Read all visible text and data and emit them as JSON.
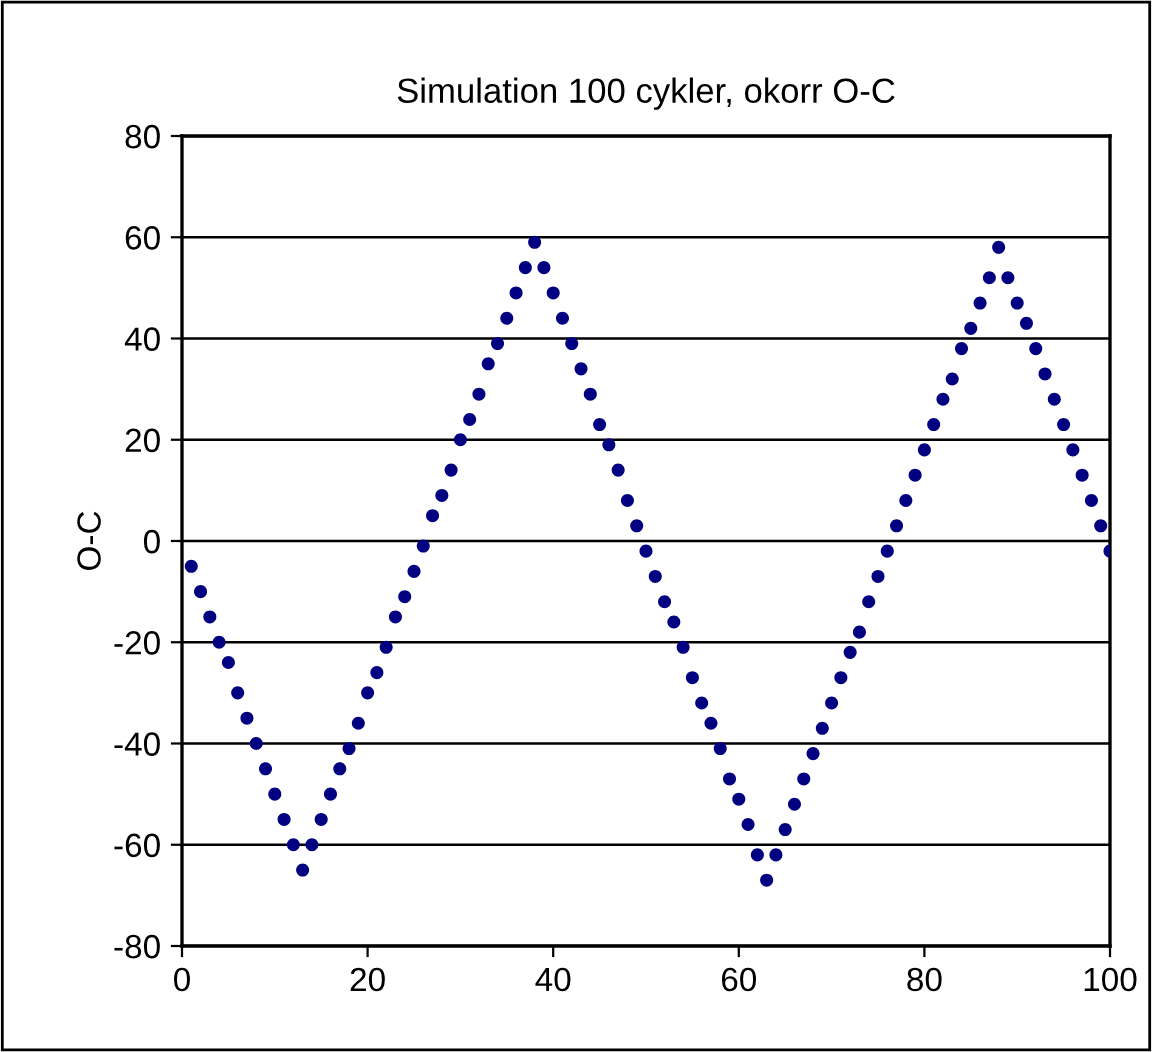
{
  "chart_data": {
    "type": "scatter",
    "title": "Simulation 100 cykler, okorr O-C",
    "ylabel": "O-C",
    "x": [
      1,
      2,
      3,
      4,
      5,
      6,
      7,
      8,
      9,
      10,
      11,
      12,
      13,
      14,
      15,
      16,
      17,
      18,
      19,
      20,
      21,
      22,
      23,
      24,
      25,
      26,
      27,
      28,
      29,
      30,
      31,
      32,
      33,
      34,
      35,
      36,
      37,
      38,
      39,
      40,
      41,
      42,
      43,
      44,
      45,
      46,
      47,
      48,
      49,
      50,
      51,
      52,
      53,
      54,
      55,
      56,
      57,
      58,
      59,
      60,
      61,
      62,
      63,
      64,
      65,
      66,
      67,
      68,
      69,
      70,
      71,
      72,
      73,
      74,
      75,
      76,
      77,
      78,
      79,
      80,
      81,
      82,
      83,
      84,
      85,
      86,
      87,
      88,
      89,
      90,
      91,
      92,
      93,
      94,
      95,
      96,
      97,
      98,
      99,
      100
    ],
    "series": [
      {
        "color": "#000080",
        "values": [
          -5,
          -10,
          -15,
          -20,
          -24,
          -30,
          -35,
          -40,
          -45,
          -50,
          -55,
          -60,
          -65,
          -60,
          -55,
          -50,
          -45,
          -41,
          -36,
          -30,
          -26,
          -21,
          -15,
          -11,
          -6,
          -1,
          5,
          9,
          14,
          20,
          24,
          29,
          35,
          39,
          44,
          49,
          54,
          59,
          54,
          49,
          44,
          39,
          34,
          29,
          23,
          19,
          14,
          8,
          3,
          -2,
          -7,
          -12,
          -16,
          -21,
          -27,
          -32,
          -36,
          -41,
          -47,
          -51,
          -56,
          -62,
          -67,
          -62,
          -57,
          -52,
          -47,
          -42,
          -37,
          -32,
          -27,
          -22,
          -18,
          -12,
          -7,
          -2,
          3,
          8,
          13,
          18,
          23,
          28,
          32,
          38,
          42,
          47,
          52,
          58,
          52,
          47,
          43,
          38,
          33,
          28,
          23,
          18,
          13,
          8,
          3,
          -2
        ]
      }
    ],
    "xlim": [
      0,
      100
    ],
    "ylim": [
      -80,
      80
    ],
    "xticks": [
      0,
      20,
      40,
      60,
      80,
      100
    ],
    "yticks": [
      -80,
      -60,
      -40,
      -20,
      0,
      20,
      40,
      60,
      80
    ],
    "grid": "y",
    "marker": "circle"
  }
}
